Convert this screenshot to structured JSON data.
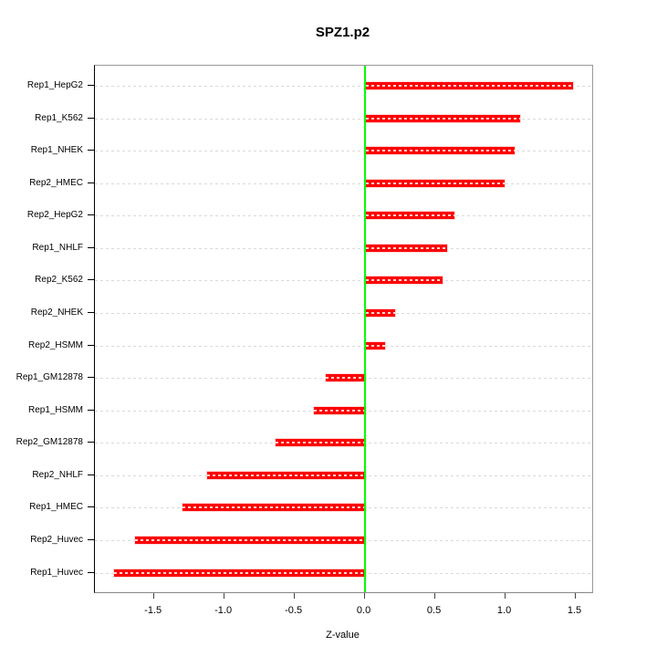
{
  "chart_data": {
    "type": "bar",
    "orientation": "horizontal",
    "title": "SPZ1.p2",
    "xlabel": "Z-value",
    "ylabel": "",
    "categories": [
      "Rep1_HepG2",
      "Rep1_K562",
      "Rep1_NHEK",
      "Rep2_HMEC",
      "Rep2_HepG2",
      "Rep1_NHLF",
      "Rep2_K562",
      "Rep2_NHEK",
      "Rep2_HSMM",
      "Rep1_GM12878",
      "Rep1_HSMM",
      "Rep2_GM12878",
      "Rep2_NHLF",
      "Rep1_HMEC",
      "Rep2_Huvec",
      "Rep1_Huvec"
    ],
    "values": [
      1.48,
      1.1,
      1.06,
      0.99,
      0.63,
      0.58,
      0.55,
      0.21,
      0.14,
      -0.28,
      -0.37,
      -0.64,
      -1.13,
      -1.3,
      -1.64,
      -1.79
    ],
    "xlim": [
      -1.92,
      1.62
    ],
    "xticks": [
      -1.5,
      -1.0,
      -0.5,
      0.0,
      0.5,
      1.0,
      1.5
    ],
    "xtick_labels": [
      "-1.5",
      "-1.0",
      "-0.5",
      "0.0",
      "0.5",
      "1.0",
      "1.5"
    ],
    "grid": true,
    "legend": null,
    "colors": {
      "bar": "#ff0000",
      "bar_border": "rgba(255,255,255,0.85)",
      "bar_dash": "rgba(255,255,255,0.85)",
      "zero_line": "#00ff00",
      "gridline": "#d9d9d9",
      "box": "#999999",
      "y_axis": "#000000",
      "x_tick": "#444444",
      "text": "#000000"
    }
  }
}
